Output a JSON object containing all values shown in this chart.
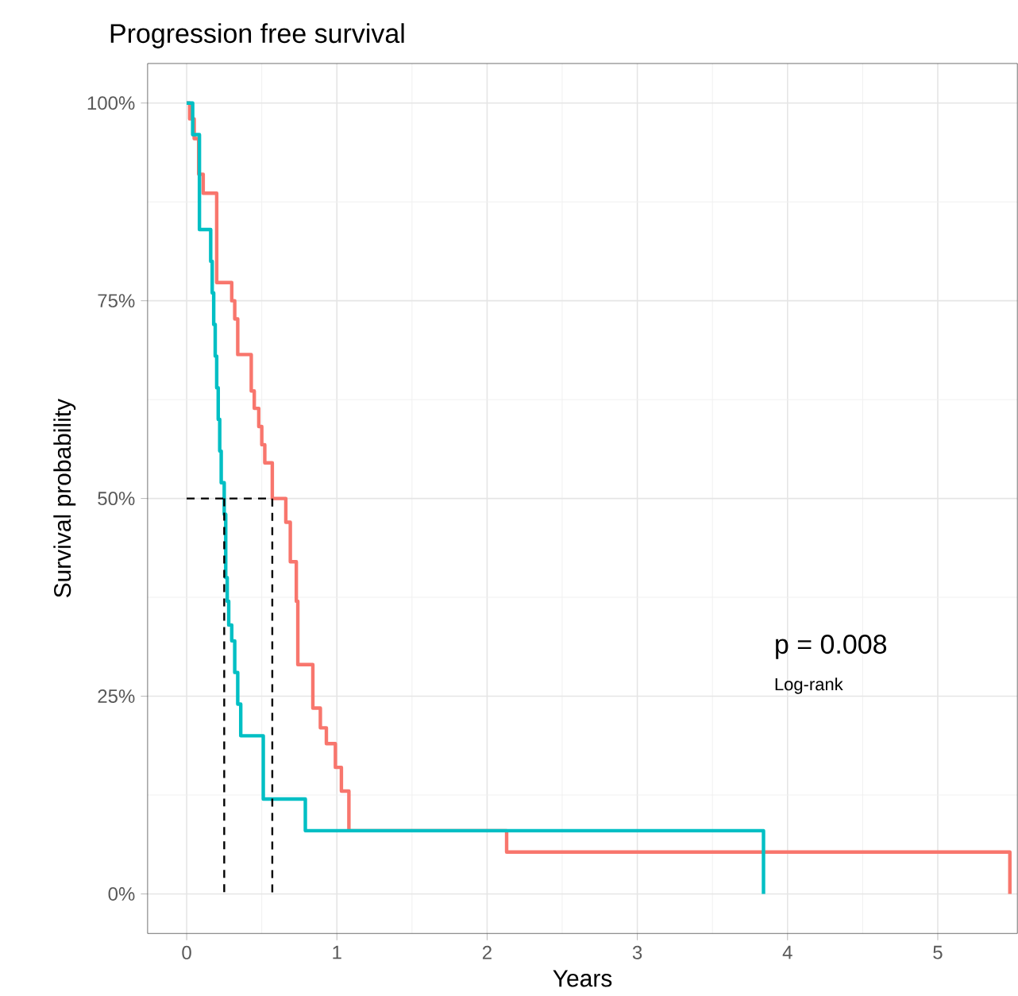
{
  "chart_data": {
    "type": "step",
    "title": "Progression free survival",
    "xlabel": "Years",
    "ylabel": "Survival probability",
    "xlim": [
      -0.26,
      5.53
    ],
    "ylim": [
      -5,
      105
    ],
    "xticks": [
      0,
      1,
      2,
      3,
      4,
      5
    ],
    "yticks": [
      {
        "value": 0,
        "label": "0%"
      },
      {
        "value": 25,
        "label": "25%"
      },
      {
        "value": 50,
        "label": "50%"
      },
      {
        "value": 75,
        "label": "75%"
      },
      {
        "value": 100,
        "label": "100%"
      }
    ],
    "grid": true,
    "series": [
      {
        "color": "#f8766d",
        "x": [
          0,
          0.02,
          0.05,
          0.08,
          0.11,
          0.2,
          0.3,
          0.32,
          0.34,
          0.43,
          0.45,
          0.48,
          0.5,
          0.52,
          0.57,
          0.66,
          0.69,
          0.73,
          0.74,
          0.84,
          0.89,
          0.93,
          0.99,
          1.03,
          1.08,
          2.13,
          5.48
        ],
        "values": [
          100,
          98,
          95.5,
          91,
          88.6,
          77.3,
          75,
          72.7,
          68.2,
          63.6,
          61.4,
          59.1,
          56.8,
          54.5,
          50,
          47,
          42,
          37,
          29,
          23.5,
          21,
          19,
          16,
          13,
          8,
          5.3,
          0
        ]
      },
      {
        "color": "#00bfc4",
        "x": [
          0,
          0.04,
          0.085,
          0.16,
          0.17,
          0.18,
          0.19,
          0.2,
          0.21,
          0.22,
          0.23,
          0.25,
          0.26,
          0.27,
          0.28,
          0.3,
          0.32,
          0.34,
          0.36,
          0.51,
          0.79,
          3.84
        ],
        "values": [
          100,
          96,
          84,
          80,
          76,
          72,
          68,
          64,
          60,
          56,
          52,
          48,
          40,
          37,
          34,
          32,
          28,
          24,
          20,
          12,
          8,
          0
        ]
      },
      {
        "type": "line",
        "color": "#000000",
        "line_style": "dashed",
        "x": [
          0,
          0.57,
          0.57
        ],
        "values": [
          50,
          50,
          0
        ]
      },
      {
        "type": "line",
        "color": "#000000",
        "line_style": "dashed",
        "x": [
          0.25,
          0.25
        ],
        "values": [
          50,
          0
        ]
      }
    ],
    "annotations": [
      "p = 0.008",
      "Log-rank"
    ]
  }
}
